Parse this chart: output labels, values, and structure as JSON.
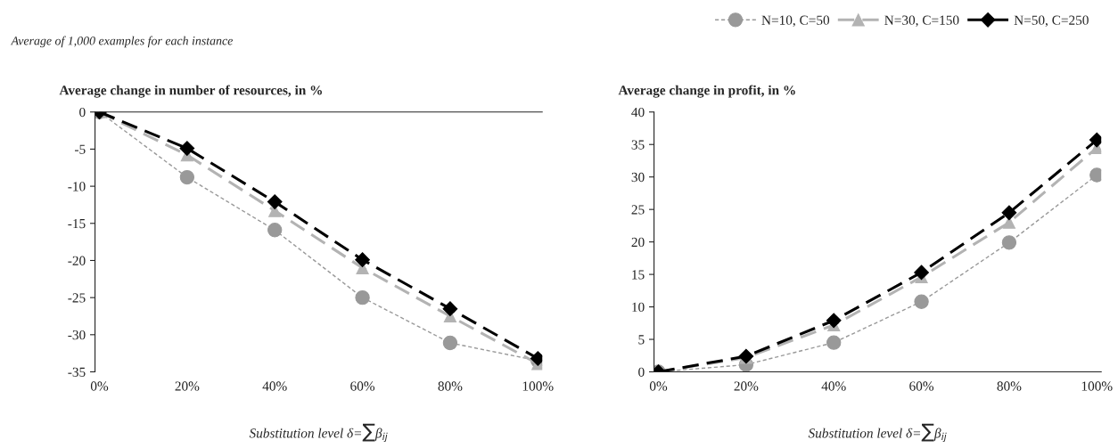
{
  "chart_data": [
    {
      "type": "line",
      "title": "Average change in number of resources, in %",
      "xlabel": "Substitution level δ=∑β$_{ij}$",
      "annotations": [
        "Average of 1,000 examples for each instance"
      ],
      "categories": [
        "0%",
        "20%",
        "40%",
        "60%",
        "80%",
        "100%"
      ],
      "ylim": [
        -35,
        0
      ],
      "yticks": [
        -35,
        -30,
        -25,
        -20,
        -15,
        -10,
        -5,
        0
      ],
      "grid": false,
      "legend": false,
      "series": [
        {
          "color": "#999999",
          "marker": "circle",
          "line_style": "dotted",
          "values": [
            0,
            -8.8,
            -15.9,
            -25,
            -31.1,
            -33.5
          ]
        },
        {
          "color": "#b3b3b3",
          "marker": "triangle",
          "line_style": "dashed",
          "values": [
            0,
            -5.8,
            -13.3,
            -21,
            -27.5,
            -33.9
          ]
        },
        {
          "color": "#000000",
          "marker": "diamond",
          "line_style": "dashed",
          "values": [
            0,
            -4.9,
            -12.1,
            -19.9,
            -26.5,
            -33.2
          ]
        }
      ]
    },
    {
      "type": "line",
      "title": "Average change in profit, in %",
      "xlabel": "Substitution level δ=∑β$_{ij}$",
      "categories": [
        "0%",
        "20%",
        "40%",
        "60%",
        "80%",
        "100%"
      ],
      "ylim": [
        0,
        40
      ],
      "yticks": [
        0,
        5,
        10,
        15,
        20,
        25,
        30,
        35,
        40
      ],
      "grid": false,
      "legend": "top right",
      "series": [
        {
          "name": "N=10, C=50",
          "color": "#999999",
          "marker": "circle",
          "line_style": "dotted",
          "values": [
            0,
            1.1,
            4.5,
            10.8,
            19.9,
            30.3
          ]
        },
        {
          "name": "N=30, C=150",
          "color": "#b3b3b3",
          "marker": "triangle",
          "line_style": "dashed",
          "values": [
            0,
            2.2,
            7.2,
            14.6,
            23,
            34.5
          ]
        },
        {
          "name": "N=50, C=250",
          "color": "#000000",
          "marker": "diamond",
          "line_style": "dashed",
          "values": [
            0,
            2.4,
            7.9,
            15.3,
            24.5,
            35.7
          ]
        }
      ]
    }
  ]
}
